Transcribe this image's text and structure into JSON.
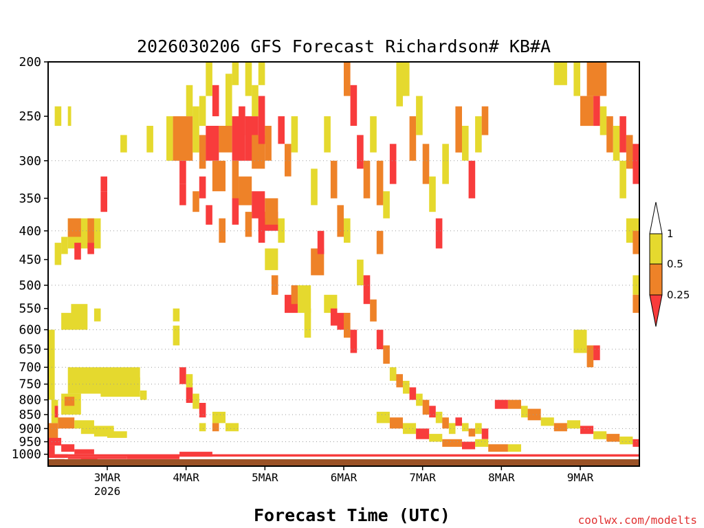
{
  "chart_data": {
    "type": "heatmap",
    "title": "2026030206 GFS Forecast Richardson# KB#A",
    "xlabel": "Forecast Time (UTC)",
    "ylabel": "",
    "credit": "coolwx.com/modelts",
    "y_scale": "log-pressure",
    "ylim": [
      1050,
      200
    ],
    "y_ticks": [
      200,
      250,
      300,
      350,
      400,
      450,
      500,
      550,
      600,
      650,
      700,
      750,
      800,
      850,
      900,
      950,
      1000
    ],
    "y_tick_labels": [
      "200",
      "250",
      "300",
      "350",
      "400",
      "450",
      "500",
      "550",
      "600",
      "650",
      "700",
      "750",
      "800",
      "850",
      "900",
      "950",
      "1000"
    ],
    "xlim_hours": [
      0,
      180
    ],
    "x_ticks": [
      {
        "label": "3MAR",
        "sub": "2026",
        "hour": 18
      },
      {
        "label": "4MAR",
        "sub": "",
        "hour": 42
      },
      {
        "label": "5MAR",
        "sub": "",
        "hour": 66
      },
      {
        "label": "6MAR",
        "sub": "",
        "hour": 90
      },
      {
        "label": "7MAR",
        "sub": "",
        "hour": 114
      },
      {
        "label": "8MAR",
        "sub": "",
        "hour": 138
      },
      {
        "label": "9MAR",
        "sub": "",
        "hour": 162
      }
    ],
    "grid": "dotted horizontal at 300, 400, 500, 600, 650, 700, 750, 800, 850, 900, 950",
    "legend": {
      "placement": "right",
      "labels": [
        "1",
        "0.5",
        "0.25"
      ],
      "bins": [
        {
          "range": "0.5 - 1",
          "color": "#e5d92e"
        },
        {
          "range": "0.25 - 0.5",
          "color": "#ee8228"
        },
        {
          "range": "< 0.25",
          "color": "#f83c3c"
        }
      ]
    },
    "colors": {
      "high": "#e5d92e",
      "mid": "#ee8228",
      "low": "#f83c3c",
      "ground": "#9a5226"
    },
    "cells": [
      [
        0,
        2,
        950,
        1010,
        "high"
      ],
      [
        0,
        3,
        880,
        950,
        "mid"
      ],
      [
        1,
        3,
        800,
        880,
        "high"
      ],
      [
        0,
        2,
        600,
        800,
        "high"
      ],
      [
        2,
        3,
        820,
        860,
        "low"
      ],
      [
        3,
        8,
        860,
        900,
        "mid"
      ],
      [
        4,
        10,
        780,
        850,
        "high"
      ],
      [
        5,
        8,
        790,
        820,
        "mid"
      ],
      [
        8,
        14,
        870,
        900,
        "high"
      ],
      [
        10,
        20,
        890,
        920,
        "high"
      ],
      [
        14,
        20,
        900,
        930,
        "high"
      ],
      [
        18,
        24,
        910,
        935,
        "high"
      ],
      [
        6,
        16,
        700,
        780,
        "high"
      ],
      [
        16,
        28,
        700,
        790,
        "high"
      ],
      [
        20,
        28,
        730,
        770,
        "high"
      ],
      [
        28,
        30,
        770,
        800,
        "high"
      ],
      [
        0,
        4,
        935,
        965,
        "low"
      ],
      [
        0,
        2,
        965,
        1000,
        "low"
      ],
      [
        4,
        8,
        960,
        990,
        "low"
      ],
      [
        8,
        14,
        980,
        1000,
        "low"
      ],
      [
        0,
        6,
        1000,
        1015,
        "low"
      ],
      [
        6,
        24,
        1010,
        1020,
        "low"
      ],
      [
        24,
        40,
        1005,
        1020,
        "low"
      ],
      [
        40,
        50,
        990,
        1010,
        "low"
      ],
      [
        2,
        5,
        1020,
        1030,
        "low"
      ],
      [
        10,
        15,
        1015,
        1025,
        "low"
      ],
      [
        4,
        8,
        560,
        600,
        "high"
      ],
      [
        7,
        12,
        540,
        600,
        "high"
      ],
      [
        14,
        16,
        550,
        580,
        "high"
      ],
      [
        6,
        16,
        380,
        430,
        "high"
      ],
      [
        6,
        10,
        380,
        410,
        "mid"
      ],
      [
        12,
        14,
        380,
        420,
        "mid"
      ],
      [
        8,
        10,
        420,
        450,
        "low"
      ],
      [
        12,
        14,
        420,
        440,
        "low"
      ],
      [
        16,
        18,
        340,
        370,
        "low"
      ],
      [
        16,
        18,
        320,
        340,
        "low"
      ],
      [
        2,
        4,
        420,
        460,
        "high"
      ],
      [
        4,
        6,
        410,
        440,
        "high"
      ],
      [
        2,
        4,
        240,
        260,
        "high"
      ],
      [
        6,
        7,
        240,
        260,
        "high"
      ],
      [
        22,
        24,
        270,
        290,
        "high"
      ],
      [
        30,
        32,
        260,
        290,
        "high"
      ],
      [
        38,
        40,
        550,
        580,
        "high"
      ],
      [
        38,
        40,
        590,
        640,
        "high"
      ],
      [
        40,
        42,
        700,
        750,
        "low"
      ],
      [
        42,
        44,
        760,
        810,
        "low"
      ],
      [
        42,
        44,
        720,
        760,
        "high"
      ],
      [
        44,
        46,
        780,
        830,
        "high"
      ],
      [
        46,
        48,
        810,
        860,
        "low"
      ],
      [
        50,
        54,
        840,
        880,
        "high"
      ],
      [
        50,
        52,
        880,
        910,
        "mid"
      ],
      [
        54,
        58,
        880,
        910,
        "high"
      ],
      [
        46,
        48,
        880,
        910,
        "high"
      ],
      [
        36,
        38,
        250,
        300,
        "high"
      ],
      [
        38,
        44,
        250,
        300,
        "mid"
      ],
      [
        40,
        42,
        300,
        330,
        "low"
      ],
      [
        44,
        46,
        240,
        290,
        "high"
      ],
      [
        46,
        48,
        270,
        310,
        "mid"
      ],
      [
        48,
        52,
        260,
        300,
        "low"
      ],
      [
        50,
        54,
        300,
        340,
        "mid"
      ],
      [
        46,
        48,
        320,
        350,
        "low"
      ],
      [
        52,
        56,
        260,
        290,
        "mid"
      ],
      [
        56,
        60,
        250,
        300,
        "low"
      ],
      [
        56,
        58,
        300,
        350,
        "mid"
      ],
      [
        60,
        64,
        250,
        300,
        "low"
      ],
      [
        62,
        66,
        270,
        310,
        "mid"
      ],
      [
        58,
        62,
        320,
        360,
        "mid"
      ],
      [
        62,
        66,
        340,
        380,
        "low"
      ],
      [
        64,
        70,
        370,
        400,
        "low"
      ],
      [
        66,
        70,
        350,
        390,
        "mid"
      ],
      [
        70,
        72,
        380,
        420,
        "high"
      ],
      [
        50,
        52,
        220,
        250,
        "low"
      ],
      [
        54,
        56,
        210,
        260,
        "high"
      ],
      [
        58,
        60,
        240,
        270,
        "low"
      ],
      [
        62,
        64,
        220,
        250,
        "high"
      ],
      [
        64,
        66,
        230,
        280,
        "low"
      ],
      [
        66,
        68,
        260,
        300,
        "mid"
      ],
      [
        70,
        72,
        250,
        280,
        "low"
      ],
      [
        72,
        74,
        280,
        320,
        "mid"
      ],
      [
        74,
        76,
        250,
        290,
        "high"
      ],
      [
        40,
        42,
        330,
        360,
        "low"
      ],
      [
        44,
        46,
        340,
        370,
        "mid"
      ],
      [
        48,
        50,
        360,
        390,
        "low"
      ],
      [
        52,
        54,
        380,
        420,
        "mid"
      ],
      [
        56,
        58,
        350,
        390,
        "low"
      ],
      [
        60,
        62,
        370,
        410,
        "mid"
      ],
      [
        64,
        66,
        380,
        420,
        "low"
      ],
      [
        46,
        48,
        230,
        260,
        "high"
      ],
      [
        42,
        44,
        220,
        250,
        "high"
      ],
      [
        48,
        50,
        200,
        230,
        "high"
      ],
      [
        56,
        58,
        200,
        220,
        "high"
      ],
      [
        60,
        62,
        200,
        230,
        "high"
      ],
      [
        64,
        66,
        200,
        220,
        "high"
      ],
      [
        66,
        70,
        430,
        470,
        "high"
      ],
      [
        68,
        70,
        480,
        520,
        "mid"
      ],
      [
        72,
        76,
        520,
        560,
        "low"
      ],
      [
        74,
        76,
        500,
        540,
        "mid"
      ],
      [
        76,
        80,
        500,
        560,
        "high"
      ],
      [
        78,
        80,
        550,
        620,
        "high"
      ],
      [
        80,
        84,
        430,
        480,
        "mid"
      ],
      [
        82,
        84,
        400,
        440,
        "low"
      ],
      [
        86,
        88,
        300,
        350,
        "mid"
      ],
      [
        84,
        86,
        250,
        290,
        "high"
      ],
      [
        80,
        82,
        310,
        360,
        "high"
      ],
      [
        88,
        90,
        360,
        410,
        "mid"
      ],
      [
        90,
        92,
        380,
        420,
        "high"
      ],
      [
        84,
        88,
        520,
        560,
        "high"
      ],
      [
        86,
        88,
        550,
        590,
        "low"
      ],
      [
        88,
        92,
        560,
        600,
        "low"
      ],
      [
        90,
        92,
        560,
        620,
        "mid"
      ],
      [
        92,
        94,
        600,
        660,
        "low"
      ],
      [
        92,
        94,
        220,
        260,
        "low"
      ],
      [
        90,
        92,
        200,
        230,
        "mid"
      ],
      [
        94,
        96,
        270,
        310,
        "low"
      ],
      [
        96,
        98,
        300,
        350,
        "mid"
      ],
      [
        98,
        100,
        250,
        290,
        "high"
      ],
      [
        100,
        102,
        300,
        360,
        "mid"
      ],
      [
        102,
        104,
        340,
        380,
        "high"
      ],
      [
        100,
        102,
        400,
        440,
        "mid"
      ],
      [
        104,
        106,
        280,
        330,
        "low"
      ],
      [
        106,
        108,
        200,
        240,
        "high"
      ],
      [
        108,
        110,
        200,
        230,
        "high"
      ],
      [
        110,
        112,
        250,
        300,
        "mid"
      ],
      [
        112,
        114,
        230,
        270,
        "high"
      ],
      [
        114,
        116,
        280,
        330,
        "mid"
      ],
      [
        116,
        118,
        320,
        370,
        "high"
      ],
      [
        118,
        120,
        380,
        430,
        "low"
      ],
      [
        120,
        122,
        280,
        330,
        "high"
      ],
      [
        124,
        126,
        240,
        290,
        "mid"
      ],
      [
        126,
        128,
        260,
        300,
        "high"
      ],
      [
        128,
        130,
        300,
        350,
        "low"
      ],
      [
        130,
        132,
        250,
        290,
        "high"
      ],
      [
        132,
        134,
        240,
        270,
        "mid"
      ],
      [
        94,
        96,
        450,
        500,
        "high"
      ],
      [
        96,
        98,
        480,
        540,
        "low"
      ],
      [
        98,
        100,
        530,
        580,
        "mid"
      ],
      [
        100,
        102,
        600,
        650,
        "low"
      ],
      [
        102,
        104,
        640,
        690,
        "mid"
      ],
      [
        104,
        106,
        700,
        740,
        "high"
      ],
      [
        106,
        108,
        720,
        760,
        "mid"
      ],
      [
        108,
        110,
        740,
        780,
        "high"
      ],
      [
        110,
        112,
        760,
        800,
        "low"
      ],
      [
        112,
        114,
        780,
        820,
        "high"
      ],
      [
        114,
        116,
        800,
        850,
        "mid"
      ],
      [
        116,
        118,
        820,
        860,
        "low"
      ],
      [
        118,
        120,
        840,
        880,
        "high"
      ],
      [
        120,
        122,
        860,
        900,
        "mid"
      ],
      [
        122,
        124,
        880,
        920,
        "high"
      ],
      [
        124,
        126,
        860,
        890,
        "low"
      ],
      [
        126,
        128,
        880,
        910,
        "high"
      ],
      [
        128,
        130,
        900,
        930,
        "mid"
      ],
      [
        130,
        132,
        880,
        920,
        "high"
      ],
      [
        132,
        134,
        900,
        940,
        "low"
      ],
      [
        100,
        104,
        840,
        880,
        "high"
      ],
      [
        104,
        108,
        860,
        900,
        "mid"
      ],
      [
        108,
        112,
        880,
        920,
        "high"
      ],
      [
        112,
        116,
        900,
        940,
        "low"
      ],
      [
        116,
        120,
        920,
        950,
        "high"
      ],
      [
        120,
        126,
        940,
        970,
        "mid"
      ],
      [
        126,
        130,
        950,
        980,
        "low"
      ],
      [
        130,
        134,
        940,
        970,
        "high"
      ],
      [
        134,
        140,
        960,
        990,
        "mid"
      ],
      [
        140,
        144,
        960,
        990,
        "high"
      ],
      [
        136,
        140,
        800,
        830,
        "low"
      ],
      [
        140,
        144,
        800,
        830,
        "mid"
      ],
      [
        144,
        146,
        820,
        860,
        "high"
      ],
      [
        146,
        150,
        830,
        870,
        "mid"
      ],
      [
        150,
        154,
        860,
        890,
        "high"
      ],
      [
        154,
        158,
        880,
        910,
        "mid"
      ],
      [
        158,
        162,
        870,
        900,
        "high"
      ],
      [
        162,
        166,
        890,
        920,
        "low"
      ],
      [
        166,
        170,
        910,
        940,
        "high"
      ],
      [
        170,
        174,
        920,
        950,
        "mid"
      ],
      [
        174,
        178,
        930,
        960,
        "high"
      ],
      [
        178,
        180,
        940,
        970,
        "low"
      ],
      [
        154,
        158,
        200,
        220,
        "high"
      ],
      [
        160,
        162,
        200,
        230,
        "high"
      ],
      [
        164,
        170,
        200,
        230,
        "mid"
      ],
      [
        162,
        166,
        230,
        260,
        "mid"
      ],
      [
        166,
        168,
        230,
        260,
        "low"
      ],
      [
        168,
        170,
        240,
        270,
        "high"
      ],
      [
        170,
        172,
        250,
        290,
        "mid"
      ],
      [
        172,
        174,
        260,
        300,
        "high"
      ],
      [
        174,
        176,
        250,
        290,
        "low"
      ],
      [
        176,
        178,
        270,
        310,
        "mid"
      ],
      [
        178,
        180,
        280,
        330,
        "low"
      ],
      [
        174,
        176,
        300,
        350,
        "high"
      ],
      [
        160,
        164,
        600,
        660,
        "high"
      ],
      [
        164,
        166,
        640,
        700,
        "mid"
      ],
      [
        166,
        168,
        640,
        680,
        "low"
      ],
      [
        176,
        180,
        380,
        420,
        "high"
      ],
      [
        178,
        180,
        400,
        440,
        "mid"
      ],
      [
        178,
        180,
        480,
        520,
        "high"
      ],
      [
        178,
        180,
        520,
        560,
        "mid"
      ],
      [
        0,
        180,
        1000,
        1010,
        "low"
      ]
    ]
  }
}
